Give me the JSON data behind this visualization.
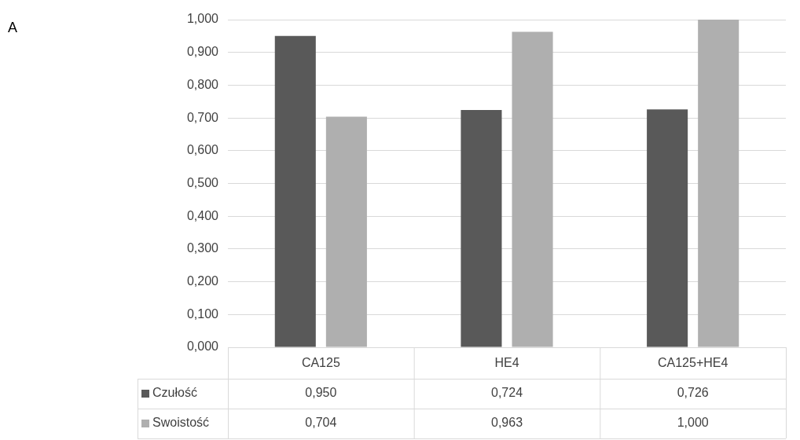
{
  "chart_data": {
    "type": "bar",
    "categories": [
      "CA125",
      "HE4",
      "CA125+HE4"
    ],
    "series": [
      {
        "name": "Czułość",
        "color": "#595959",
        "values": [
          0.95,
          0.724,
          0.726
        ],
        "value_labels": [
          "0,950",
          "0,724",
          "0,726"
        ]
      },
      {
        "name": "Swoistość",
        "color": "#afafaf",
        "values": [
          0.704,
          0.963,
          1.0
        ],
        "value_labels": [
          "0,704",
          "0,963",
          "1,000"
        ]
      }
    ],
    "ylim": [
      0,
      1
    ],
    "yticks": [
      {
        "value": 0,
        "label": "0,000"
      },
      {
        "value": 0.1,
        "label": "0,100"
      },
      {
        "value": 0.2,
        "label": "0,200"
      },
      {
        "value": 0.3,
        "label": "0,300"
      },
      {
        "value": 0.4,
        "label": "0,400"
      },
      {
        "value": 0.5,
        "label": "0,500"
      },
      {
        "value": 0.6,
        "label": "0,600"
      },
      {
        "value": 0.7,
        "label": "0,700"
      },
      {
        "value": 0.8,
        "label": "0,800"
      },
      {
        "value": 0.9,
        "label": "0,900"
      },
      {
        "value": 1,
        "label": "1,000"
      }
    ],
    "grid": "y",
    "legend": "bottom left",
    "annotations": [
      "A"
    ]
  }
}
